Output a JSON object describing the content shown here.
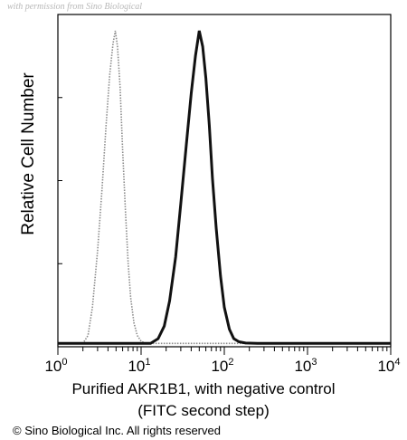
{
  "watermark": "with permission from Sino Biological",
  "copyright": "© Sino Biological Inc. All rights reserved",
  "chart_data": {
    "type": "line",
    "xlabel_line1": "Purified AKR1B1, with negative control",
    "xlabel_line2": "(FITC second step)",
    "ylabel": "Relative Cell Number",
    "x_scale": "log",
    "xlim": [
      1,
      10000
    ],
    "ylim": [
      0,
      1
    ],
    "x_ticks": [
      {
        "base": "10",
        "exp": "0"
      },
      {
        "base": "10",
        "exp": "1"
      },
      {
        "base": "10",
        "exp": "2"
      },
      {
        "base": "10",
        "exp": "3"
      },
      {
        "base": "10",
        "exp": "4"
      }
    ],
    "grid": false,
    "series": [
      {
        "style": "dotted-gray",
        "x": [
          1,
          2,
          2.3,
          2.6,
          3,
          3.4,
          3.8,
          4.2,
          4.6,
          4.9,
          5.2,
          5.6,
          6,
          6.5,
          7,
          7.5,
          8.2,
          9,
          10,
          11,
          13,
          20,
          100,
          1000,
          10000
        ],
        "y": [
          0.005,
          0.005,
          0.03,
          0.12,
          0.3,
          0.5,
          0.7,
          0.86,
          0.96,
          1.0,
          0.95,
          0.82,
          0.62,
          0.42,
          0.26,
          0.15,
          0.07,
          0.03,
          0.012,
          0.006,
          0.005,
          0.005,
          0.005,
          0.005,
          0.005
        ]
      },
      {
        "style": "solid-black",
        "x": [
          1,
          13,
          16,
          19,
          22,
          26,
          30,
          35,
          40,
          45,
          50,
          55,
          60,
          66,
          72,
          80,
          90,
          100,
          115,
          130,
          150,
          180,
          250,
          1000,
          10000
        ],
        "y": [
          0.005,
          0.005,
          0.02,
          0.06,
          0.14,
          0.28,
          0.45,
          0.64,
          0.8,
          0.92,
          1.0,
          0.95,
          0.85,
          0.7,
          0.53,
          0.37,
          0.22,
          0.12,
          0.05,
          0.02,
          0.01,
          0.006,
          0.005,
          0.005,
          0.005
        ]
      }
    ]
  }
}
